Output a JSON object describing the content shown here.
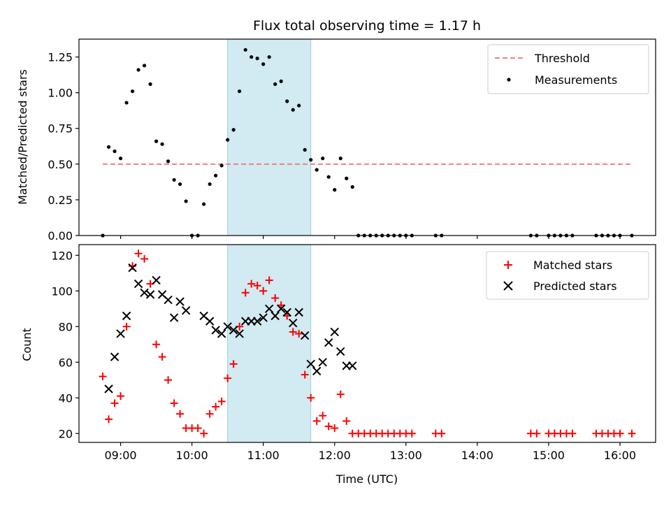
{
  "chart_data": [
    {
      "type": "scatter",
      "title": "Flux total observing time = 1.17 h",
      "xlabel": "",
      "ylabel": "Matched/Predicted stars",
      "ylim": [
        0,
        1.375
      ],
      "yticks": [
        "0.00",
        "0.25",
        "0.50",
        "0.75",
        "1.00",
        "1.25"
      ],
      "ytick_values": [
        0,
        0.25,
        0.5,
        0.75,
        1.0,
        1.25
      ],
      "shaded_region": [
        "10:30",
        "11:40"
      ],
      "shade_color": "#add8e6",
      "legend_position": "top-right",
      "threshold": {
        "name": "Threshold",
        "value": 0.5,
        "x_range": [
          "08:45",
          "16:10"
        ],
        "color": "#f08080"
      },
      "series": [
        {
          "name": "Measurements",
          "color": "#000000",
          "x": [
            "08:45",
            "08:50",
            "08:55",
            "09:00",
            "09:05",
            "09:10",
            "09:15",
            "09:20",
            "09:25",
            "09:30",
            "09:35",
            "09:40",
            "09:45",
            "09:50",
            "09:55",
            "10:00",
            "10:05",
            "10:10",
            "10:15",
            "10:20",
            "10:25",
            "10:30",
            "10:35",
            "10:40",
            "10:45",
            "10:50",
            "10:55",
            "11:00",
            "11:05",
            "11:10",
            "11:15",
            "11:20",
            "11:25",
            "11:30",
            "11:35",
            "11:40",
            "11:45",
            "11:50",
            "11:55",
            "12:00",
            "12:05",
            "12:10",
            "12:15",
            "12:20",
            "12:25",
            "12:30",
            "12:35",
            "12:40",
            "12:45",
            "12:50",
            "12:55",
            "13:00",
            "13:05",
            "13:25",
            "13:30",
            "14:45",
            "14:50",
            "15:00",
            "15:05",
            "15:10",
            "15:15",
            "15:20",
            "15:40",
            "15:45",
            "15:50",
            "15:55",
            "16:00",
            "16:10"
          ],
          "y": [
            0.0,
            0.62,
            0.59,
            0.54,
            0.93,
            1.01,
            1.16,
            1.19,
            1.06,
            0.66,
            0.64,
            0.52,
            0.39,
            0.36,
            0.24,
            0.0,
            0.0,
            0.22,
            0.36,
            0.42,
            0.49,
            0.67,
            0.74,
            1.01,
            1.3,
            1.25,
            1.24,
            1.2,
            1.25,
            1.06,
            1.08,
            0.94,
            0.88,
            0.91,
            0.6,
            0.53,
            0.46,
            0.54,
            0.41,
            0.32,
            0.54,
            0.4,
            0.34,
            0.0,
            0.0,
            0.0,
            0.0,
            0.0,
            0.0,
            0.0,
            0.0,
            0.0,
            0.0,
            0.0,
            0.0,
            0.0,
            0.0,
            0.0,
            0.0,
            0.0,
            0.0,
            0.0,
            0.0,
            0.0,
            0.0,
            0.0,
            0.0,
            0.0
          ]
        }
      ]
    },
    {
      "type": "scatter",
      "title": "",
      "xlabel": "Time (UTC)",
      "ylabel": "Count",
      "ylim": [
        15,
        126
      ],
      "yticks": [
        "20",
        "40",
        "60",
        "80",
        "100",
        "120"
      ],
      "ytick_values": [
        20,
        40,
        60,
        80,
        100,
        120
      ],
      "xlim": [
        "08:25",
        "16:30"
      ],
      "xticks": [
        "09:00",
        "10:00",
        "11:00",
        "12:00",
        "13:00",
        "14:00",
        "15:00",
        "16:00"
      ],
      "shaded_region": [
        "10:30",
        "11:40"
      ],
      "shade_color": "#add8e6",
      "legend_position": "top-right",
      "series": [
        {
          "name": "Matched stars",
          "marker": "plus",
          "color": "#ff0000",
          "x": [
            "08:45",
            "08:50",
            "08:55",
            "09:00",
            "09:05",
            "09:10",
            "09:15",
            "09:20",
            "09:25",
            "09:30",
            "09:35",
            "09:40",
            "09:45",
            "09:50",
            "09:55",
            "10:00",
            "10:05",
            "10:10",
            "10:15",
            "10:20",
            "10:25",
            "10:30",
            "10:35",
            "10:40",
            "10:45",
            "10:50",
            "10:55",
            "11:00",
            "11:05",
            "11:10",
            "11:15",
            "11:20",
            "11:25",
            "11:30",
            "11:35",
            "11:40",
            "11:45",
            "11:50",
            "11:55",
            "12:00",
            "12:05",
            "12:10",
            "12:15",
            "12:20",
            "12:25",
            "12:30",
            "12:35",
            "12:40",
            "12:45",
            "12:50",
            "12:55",
            "13:00",
            "13:05",
            "13:25",
            "13:30",
            "14:45",
            "14:50",
            "15:00",
            "15:05",
            "15:10",
            "15:15",
            "15:20",
            "15:40",
            "15:45",
            "15:50",
            "15:55",
            "16:00",
            "16:10"
          ],
          "y": [
            52,
            28,
            37,
            41,
            80,
            114,
            121,
            118,
            104,
            70,
            63,
            50,
            37,
            31,
            23,
            23,
            23,
            20,
            31,
            35,
            38,
            51,
            59,
            80,
            99,
            104,
            103,
            100,
            106,
            96,
            92,
            86,
            77,
            76,
            53,
            40,
            27,
            30,
            24,
            23,
            42,
            27,
            20,
            20,
            20,
            20,
            20,
            20,
            20,
            20,
            20,
            20,
            20,
            20,
            20,
            20,
            20,
            20,
            20,
            20,
            20,
            20,
            20,
            20,
            20,
            20,
            20,
            20
          ]
        },
        {
          "name": "Predicted stars",
          "marker": "x",
          "color": "#000000",
          "x": [
            "08:50",
            "08:55",
            "09:00",
            "09:05",
            "09:10",
            "09:15",
            "09:20",
            "09:25",
            "09:30",
            "09:35",
            "09:40",
            "09:45",
            "09:50",
            "09:55",
            "10:10",
            "10:15",
            "10:20",
            "10:25",
            "10:30",
            "10:35",
            "10:40",
            "10:45",
            "10:50",
            "10:55",
            "11:00",
            "11:05",
            "11:10",
            "11:15",
            "11:20",
            "11:25",
            "11:30",
            "11:35",
            "11:40",
            "11:45",
            "11:50",
            "11:55",
            "12:00",
            "12:05",
            "12:10",
            "12:15"
          ],
          "y": [
            45,
            63,
            76,
            86,
            113,
            104,
            99,
            98,
            106,
            98,
            95,
            85,
            94,
            89,
            86,
            83,
            78,
            76,
            80,
            78,
            76,
            83,
            83,
            83,
            85,
            90,
            86,
            90,
            88,
            82,
            88,
            75,
            59,
            55,
            60,
            71,
            77,
            66,
            58,
            58
          ]
        }
      ]
    }
  ]
}
